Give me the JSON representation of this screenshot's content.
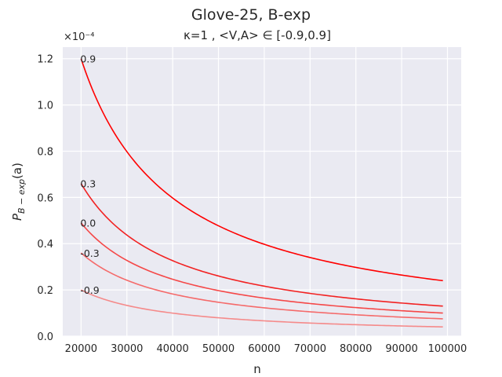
{
  "chart_data": {
    "type": "line",
    "title": "Glove-25, B-exp",
    "subtitle": "κ=1 , <V,A> ∈ [-0.9,0.9]",
    "xlabel": "n",
    "ylabel_main": "P",
    "ylabel_sub": "B − exp",
    "ylabel_tail": "(a)",
    "y_multiplier": "×10⁻⁴",
    "xlim": [
      16000,
      103000
    ],
    "ylim": [
      0,
      1.25
    ],
    "xticks": [
      20000,
      30000,
      40000,
      50000,
      60000,
      70000,
      80000,
      90000,
      100000
    ],
    "yticks": [
      0.0,
      0.2,
      0.4,
      0.6,
      0.8,
      1.0,
      1.2
    ],
    "x_start": 20000,
    "x_end": 99000,
    "grid": true,
    "series": [
      {
        "label": "0.9",
        "y_start": 1.2,
        "y_end": 0.24,
        "color": "#ff0000"
      },
      {
        "label": "0.3",
        "y_start": 0.66,
        "y_end": 0.13,
        "color": "#f22222"
      },
      {
        "label": "0.0",
        "y_start": 0.49,
        "y_end": 0.1,
        "color": "#f54848"
      },
      {
        "label": "-0.3",
        "y_start": 0.36,
        "y_end": 0.075,
        "color": "#f56a6a"
      },
      {
        "label": "-0.9",
        "y_start": 0.2,
        "y_end": 0.04,
        "color": "#f58a8a"
      }
    ]
  }
}
